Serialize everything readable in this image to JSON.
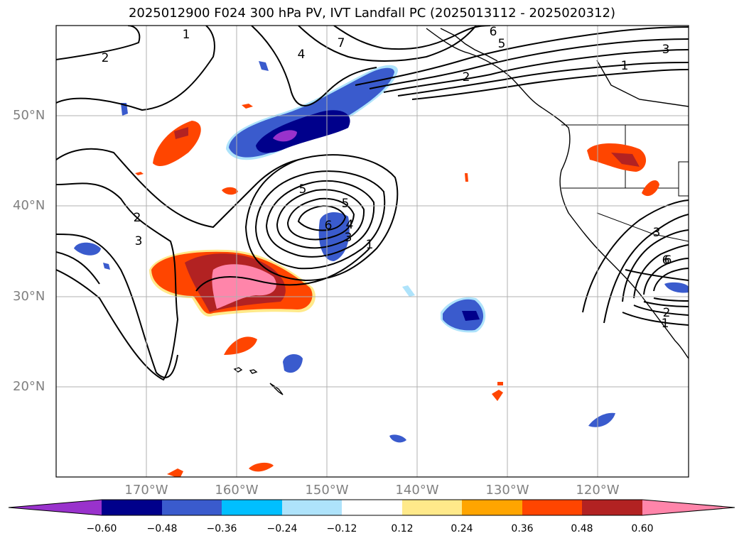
{
  "title": "2025012900 F024 300 hPa PV, IVT Landfall PC (2025013112 - 2025020312)",
  "map": {
    "projection": "PlateCarree",
    "extent_lon": [
      -180,
      -110
    ],
    "extent_lat": [
      10,
      60
    ],
    "gridlines": true,
    "lat_labels": [
      "20°N",
      "30°N",
      "40°N",
      "50°N"
    ],
    "lon_labels": [
      "170°W",
      "160°W",
      "150°W",
      "140°W",
      "130°W",
      "120°W"
    ],
    "contour_labels": [
      "1",
      "2",
      "3",
      "4",
      "5",
      "6",
      "7",
      "1",
      "2",
      "3",
      "5",
      "6",
      "1",
      "2",
      "3",
      "4",
      "5",
      "6",
      "1",
      "2",
      "3",
      "6"
    ]
  },
  "colorbar": {
    "ticks": [
      "−0.60",
      "−0.48",
      "−0.36",
      "−0.24",
      "−0.12",
      "0.12",
      "0.24",
      "0.36",
      "0.48",
      "0.60"
    ],
    "colors": [
      "#9932cc",
      "#00008b",
      "#3a5bcd",
      "#00bfff",
      "#aee3fb",
      "#ffffff",
      "#ffe98a",
      "#ffa500",
      "#ff4500",
      "#b22222",
      "#ff85aa",
      "#ff85aa"
    ]
  }
}
